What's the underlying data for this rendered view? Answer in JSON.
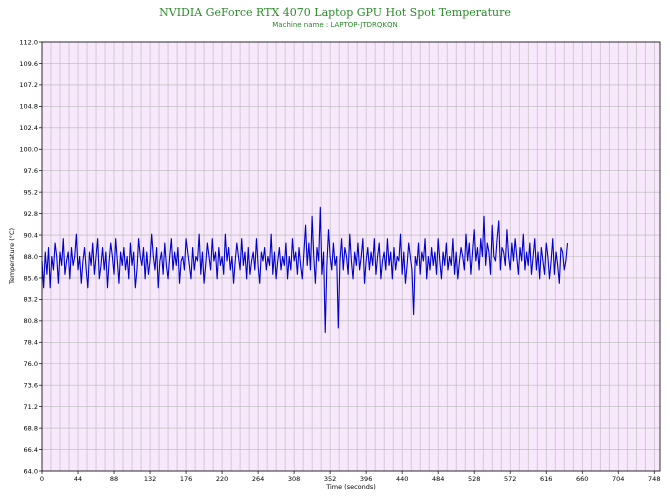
{
  "colors": {
    "plot_bg": "#f7e8fb",
    "grid": "#b9b9b9",
    "series": "#0000cc",
    "title": "#2a8a2a"
  },
  "chart_data": {
    "type": "line",
    "title": "NVIDIA GeForce RTX 4070 Laptop GPU Hot Spot Temperature",
    "subtitle": "Machine name : LAPTOP-JTDRQKQN",
    "xlabel": "Time (seconds)",
    "ylabel": "Temperature (°C)",
    "xlim": [
      0,
      755
    ],
    "ylim": [
      64.0,
      112.0
    ],
    "x_ticks": [
      0,
      44,
      88,
      132,
      176,
      220,
      264,
      308,
      352,
      396,
      440,
      484,
      528,
      572,
      616,
      660,
      704,
      748
    ],
    "y_ticks": [
      "64.0",
      "66.4",
      "68.8",
      "71.2",
      "73.6",
      "76.0",
      "78.4",
      "80.8",
      "83.2",
      "85.6",
      "88.0",
      "90.4",
      "92.8",
      "95.2",
      "97.6",
      "100.0",
      "102.4",
      "104.8",
      "107.2",
      "109.6",
      "112.0"
    ],
    "grid": true,
    "series": [
      {
        "x_start": 0,
        "x_step": 2,
        "values": [
          87.5,
          84.5,
          88.5,
          86.0,
          89.0,
          84.5,
          88.0,
          86.5,
          89.5,
          88.0,
          85.0,
          88.5,
          87.0,
          90.0,
          86.0,
          87.5,
          88.5,
          85.5,
          89.0,
          87.0,
          88.0,
          90.5,
          86.5,
          88.0,
          85.0,
          87.5,
          89.0,
          86.5,
          84.5,
          88.5,
          87.0,
          89.5,
          86.0,
          88.0,
          90.0,
          85.5,
          87.0,
          89.0,
          86.5,
          88.5,
          84.5,
          87.5,
          89.5,
          88.0,
          86.0,
          90.0,
          87.5,
          85.0,
          88.5,
          87.0,
          89.0,
          86.5,
          88.0,
          85.5,
          89.5,
          87.0,
          88.5,
          84.5,
          86.5,
          90.0,
          88.0,
          87.0,
          89.0,
          85.5,
          88.5,
          86.0,
          87.5,
          90.5,
          88.0,
          86.5,
          89.0,
          84.5,
          87.5,
          88.5,
          86.0,
          89.5,
          87.0,
          85.5,
          88.0,
          90.0,
          86.5,
          88.5,
          87.0,
          89.0,
          85.0,
          87.5,
          88.0,
          86.5,
          90.0,
          88.5,
          87.0,
          85.5,
          89.0,
          86.5,
          88.0,
          87.5,
          90.5,
          86.0,
          88.5,
          85.0,
          87.0,
          89.5,
          88.0,
          86.5,
          90.0,
          87.5,
          88.5,
          85.5,
          89.0,
          87.0,
          88.0,
          86.0,
          90.5,
          87.5,
          89.0,
          86.5,
          88.0,
          85.0,
          87.5,
          89.5,
          88.0,
          86.5,
          90.0,
          87.0,
          88.5,
          85.5,
          89.0,
          86.0,
          87.5,
          88.5,
          86.5,
          90.0,
          87.0,
          85.0,
          88.5,
          87.5,
          89.0,
          86.5,
          88.0,
          87.0,
          90.5,
          86.0,
          88.5,
          85.5,
          87.5,
          89.0,
          86.5,
          88.0,
          87.0,
          89.5,
          85.5,
          88.0,
          86.5,
          90.0,
          87.5,
          88.5,
          86.0,
          89.0,
          87.0,
          85.5,
          88.5,
          91.5,
          87.0,
          89.5,
          86.5,
          92.5,
          88.0,
          85.0,
          89.0,
          87.5,
          93.5,
          86.0,
          88.5,
          79.5,
          87.0,
          91.0,
          88.0,
          86.5,
          89.5,
          87.0,
          88.0,
          80.0,
          87.5,
          90.0,
          86.5,
          89.0,
          88.0,
          86.0,
          90.5,
          87.5,
          85.5,
          88.5,
          87.0,
          89.5,
          86.5,
          88.0,
          90.0,
          85.0,
          87.5,
          89.0,
          86.5,
          88.5,
          87.0,
          90.0,
          86.0,
          88.0,
          89.5,
          85.5,
          87.5,
          88.5,
          86.5,
          90.0,
          87.0,
          88.5,
          85.5,
          89.0,
          86.5,
          88.0,
          87.5,
          90.5,
          86.0,
          88.5,
          85.0,
          87.0,
          89.5,
          88.0,
          86.5,
          81.5,
          88.0,
          87.0,
          89.5,
          86.0,
          88.5,
          87.5,
          90.0,
          85.5,
          88.0,
          86.5,
          89.0,
          87.0,
          88.5,
          86.0,
          90.0,
          87.5,
          85.5,
          88.5,
          87.0,
          89.5,
          86.5,
          88.0,
          87.0,
          90.0,
          86.0,
          88.5,
          85.5,
          87.5,
          89.0,
          88.0,
          86.5,
          90.5,
          87.5,
          89.5,
          86.0,
          88.5,
          91.0,
          87.5,
          89.0,
          86.5,
          90.0,
          88.0,
          92.5,
          87.0,
          89.5,
          88.5,
          86.0,
          91.5,
          88.0,
          87.5,
          90.0,
          92.0,
          86.5,
          89.0,
          88.5,
          87.0,
          91.0,
          88.0,
          86.5,
          89.5,
          87.5,
          90.0,
          88.0,
          86.0,
          89.0,
          87.5,
          90.5,
          86.5,
          88.5,
          87.0,
          89.5,
          86.0,
          88.0,
          90.0,
          86.5,
          88.5,
          85.5,
          89.0,
          87.5,
          86.0,
          89.5,
          88.0,
          85.5,
          87.5,
          90.0,
          86.0,
          88.5,
          87.0,
          85.0,
          89.0,
          88.5,
          86.5,
          87.5,
          89.5
        ]
      }
    ]
  }
}
